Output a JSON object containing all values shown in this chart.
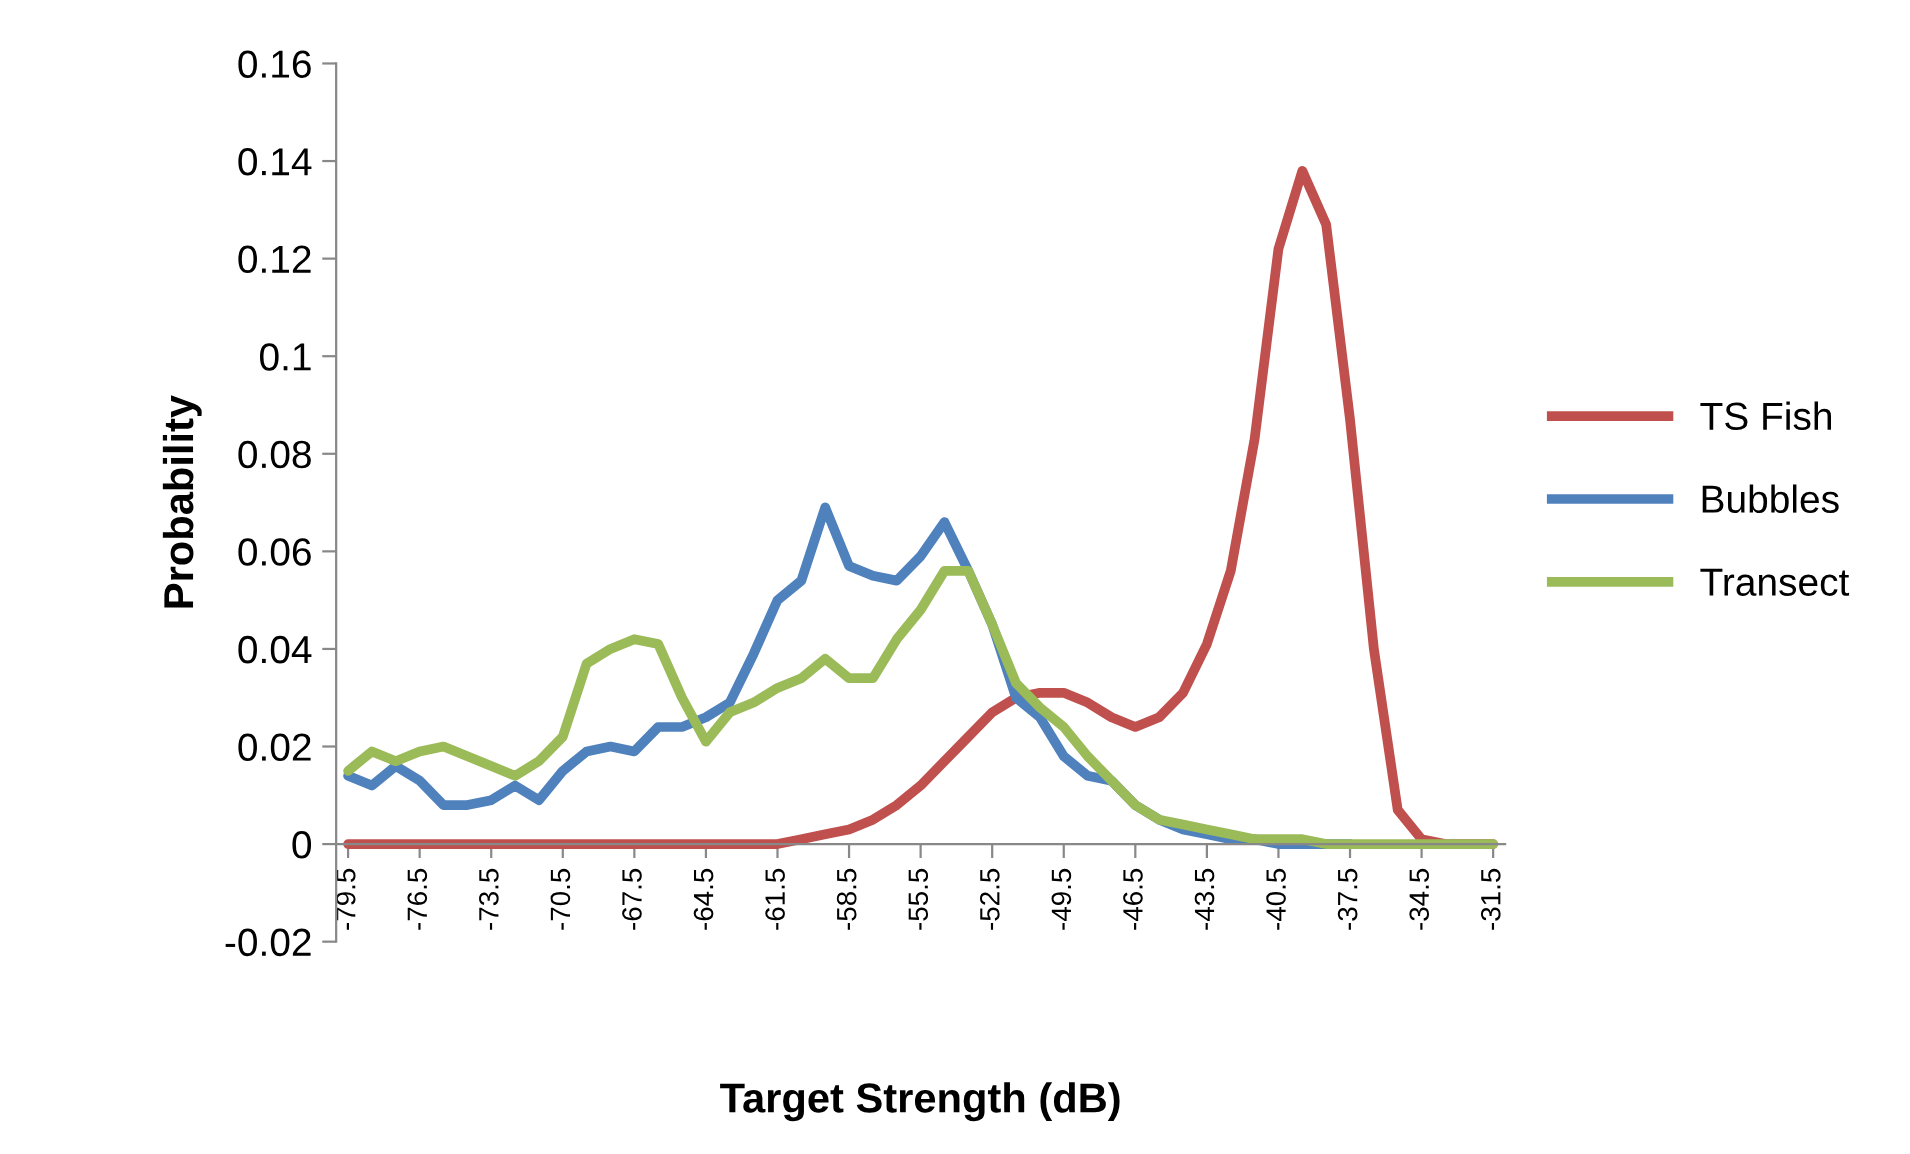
{
  "chart_data": {
    "type": "line",
    "xlabel": "Target Strength (dB)",
    "ylabel": "Probability",
    "x": [
      -79.5,
      -78.5,
      -77.5,
      -76.5,
      -75.5,
      -74.5,
      -73.5,
      -72.5,
      -71.5,
      -70.5,
      -69.5,
      -68.5,
      -67.5,
      -66.5,
      -65.5,
      -64.5,
      -63.5,
      -62.5,
      -61.5,
      -60.5,
      -59.5,
      -58.5,
      -57.5,
      -56.5,
      -55.5,
      -54.5,
      -53.5,
      -52.5,
      -51.5,
      -50.5,
      -49.5,
      -48.5,
      -47.5,
      -46.5,
      -45.5,
      -44.5,
      -43.5,
      -42.5,
      -41.5,
      -40.5,
      -39.5,
      -38.5,
      -37.5,
      -36.5,
      -35.5,
      -34.5,
      -33.5,
      -32.5,
      -31.5
    ],
    "series": [
      {
        "name": "TS Fish",
        "color": "#c0504d",
        "values": [
          0,
          0,
          0,
          0,
          0,
          0,
          0,
          0,
          0,
          0,
          0,
          0,
          0,
          0,
          0,
          0,
          0,
          0,
          0,
          0.001,
          0.002,
          0.003,
          0.005,
          0.008,
          0.012,
          0.017,
          0.022,
          0.027,
          0.03,
          0.031,
          0.031,
          0.029,
          0.026,
          0.024,
          0.026,
          0.031,
          0.041,
          0.056,
          0.083,
          0.122,
          0.138,
          0.127,
          0.087,
          0.04,
          0.007,
          0.001,
          0,
          0,
          0
        ]
      },
      {
        "name": "Bubbles",
        "color": "#4f81bd",
        "values": [
          0.014,
          0.012,
          0.016,
          0.013,
          0.008,
          0.008,
          0.009,
          0.012,
          0.009,
          0.015,
          0.019,
          0.02,
          0.019,
          0.024,
          0.024,
          0.026,
          0.029,
          0.039,
          0.05,
          0.054,
          0.069,
          0.057,
          0.055,
          0.054,
          0.059,
          0.066,
          0.056,
          0.045,
          0.03,
          0.026,
          0.018,
          0.014,
          0.013,
          0.008,
          0.005,
          0.003,
          0.002,
          0.001,
          0.001,
          0,
          0,
          0,
          0,
          null,
          null,
          null,
          null,
          null,
          null
        ]
      },
      {
        "name": "Transect",
        "color": "#9bbb59",
        "values": [
          0.015,
          0.019,
          0.017,
          0.019,
          0.02,
          0.018,
          0.016,
          0.014,
          0.017,
          0.022,
          0.037,
          0.04,
          0.042,
          0.041,
          0.03,
          0.021,
          0.027,
          0.029,
          0.032,
          0.034,
          0.038,
          0.034,
          0.034,
          0.042,
          0.048,
          0.056,
          0.056,
          0.045,
          0.033,
          0.028,
          0.024,
          0.018,
          0.013,
          0.008,
          0.005,
          0.004,
          0.003,
          0.002,
          0.001,
          0.001,
          0.001,
          0,
          0,
          0,
          0,
          0,
          0,
          0,
          0
        ]
      }
    ],
    "xlim": [
      -80,
      -31
    ],
    "xticks": [
      -79.5,
      -76.5,
      -73.5,
      -70.5,
      -67.5,
      -64.5,
      -61.5,
      -58.5,
      -55.5,
      -52.5,
      -49.5,
      -46.5,
      -43.5,
      -40.5,
      -37.5,
      -34.5,
      -31.5
    ],
    "ylim": [
      -0.02,
      0.16
    ],
    "yticks": [
      {
        "value": -0.02,
        "label": "-0.02"
      },
      0,
      {
        "value": 0.02,
        "label": "0.02"
      },
      {
        "value": 0.04,
        "label": "0.04"
      },
      {
        "value": 0.06,
        "label": "0.06"
      },
      {
        "value": 0.08,
        "label": "0.08"
      },
      {
        "value": 0.1,
        "label": "0.1"
      },
      {
        "value": 0.12,
        "label": "0.12"
      },
      {
        "value": 0.14,
        "label": "0.14"
      },
      {
        "value": 0.16,
        "label": "0.16"
      }
    ],
    "grid": false,
    "legend": "right",
    "marker": "none",
    "line_style": "solid"
  }
}
